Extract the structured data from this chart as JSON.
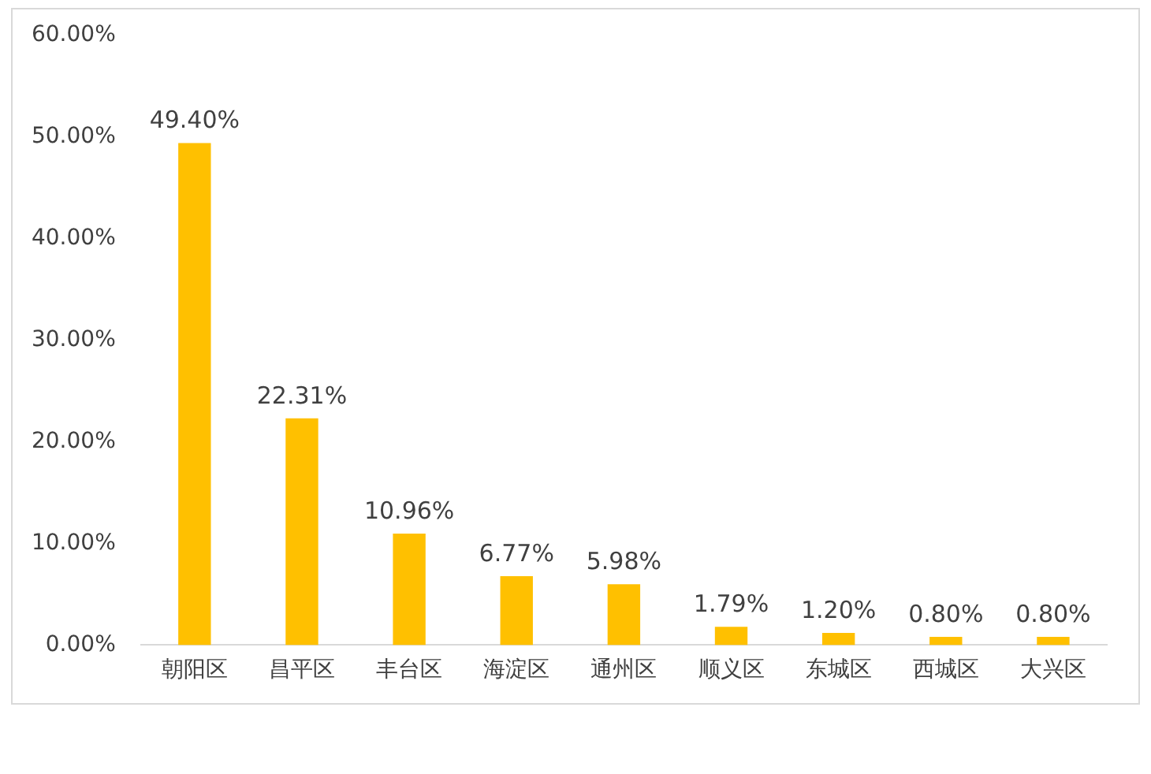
{
  "chart_data": {
    "type": "bar",
    "categories": [
      "朝阳区",
      "昌平区",
      "丰台区",
      "海淀区",
      "通州区",
      "顺义区",
      "东城区",
      "西城区",
      "大兴区"
    ],
    "values": [
      49.4,
      22.31,
      10.96,
      6.77,
      5.98,
      1.79,
      1.2,
      0.8,
      0.8
    ],
    "value_labels": [
      "49.40%",
      "22.31%",
      "10.96%",
      "6.77%",
      "5.98%",
      "1.79%",
      "1.20%",
      "0.80%",
      "0.80%"
    ],
    "color": "#ffc000",
    "ylim": [
      0,
      60
    ],
    "yticks": [
      {
        "value": 0,
        "label": "0.00%"
      },
      {
        "value": 10,
        "label": "10.00%"
      },
      {
        "value": 20,
        "label": "20.00%"
      },
      {
        "value": 30,
        "label": "30.00%"
      },
      {
        "value": 40,
        "label": "40.00%"
      },
      {
        "value": 50,
        "label": "50.00%"
      },
      {
        "value": 60,
        "label": "60.00%"
      }
    ],
    "grid": false,
    "legend": false
  }
}
